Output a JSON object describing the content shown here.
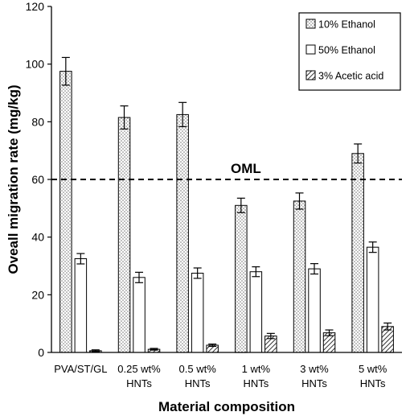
{
  "chart_data": {
    "type": "bar",
    "xlabel": "Material composition",
    "ylabel": "Oveall migration rate (mg/kg)",
    "ylim": [
      0,
      120
    ],
    "yticks": [
      0,
      20,
      40,
      60,
      80,
      100,
      120
    ],
    "grid": false,
    "legend_position": "top-right",
    "categories": [
      [
        "PVA/ST/GL"
      ],
      [
        "0.25 wt%",
        "HNTs"
      ],
      [
        "0.5 wt%",
        "HNTs"
      ],
      [
        "1 wt%",
        "HNTs"
      ],
      [
        "3 wt%",
        "HNTs"
      ],
      [
        "5 wt%",
        "HNTs"
      ]
    ],
    "series": [
      {
        "name": "10% Ethanol",
        "pattern": "dots",
        "values": [
          97.5,
          81.5,
          82.5,
          51.0,
          52.5,
          69.0
        ],
        "errors": [
          4.8,
          4.0,
          4.2,
          2.5,
          2.8,
          3.3
        ]
      },
      {
        "name": "50% Ethanol",
        "pattern": "plain",
        "values": [
          32.5,
          26.0,
          27.5,
          28.0,
          29.0,
          36.5
        ],
        "errors": [
          1.8,
          1.8,
          1.8,
          1.7,
          1.8,
          1.8
        ]
      },
      {
        "name": "3% Acetic acid",
        "pattern": "hatch",
        "values": [
          0.6,
          1.1,
          2.5,
          5.7,
          6.8,
          9.0
        ],
        "errors": [
          0.3,
          0.3,
          0.4,
          0.9,
          1.0,
          1.2
        ]
      }
    ],
    "reference_line": {
      "label": "OML",
      "value": 60
    },
    "colors": {
      "bar_fill": "#ffffff",
      "stroke": "#000000",
      "dots": "#6b6b6b"
    }
  }
}
